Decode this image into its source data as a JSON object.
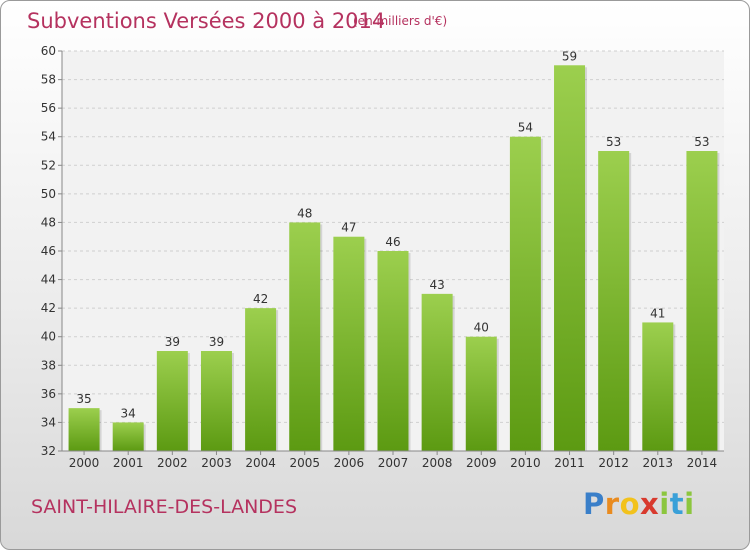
{
  "header": {
    "title": "Subventions Versées 2000 à 2014",
    "unit": "(en milliers d'€)"
  },
  "footer": {
    "commune": "SAINT-HILAIRE-DES-LANDES",
    "logo_letters": [
      "P",
      "r",
      "o",
      "x",
      "i",
      "t",
      "i"
    ],
    "logo_colors": [
      "#3a7fc9",
      "#e98b1f",
      "#f2c21c",
      "#d83a2e",
      "#8cc63e",
      "#3aa0d8",
      "#8cc63e"
    ]
  },
  "chart_data": {
    "type": "bar",
    "title": "Subventions Versées 2000 à 2014",
    "subtitle": "(en milliers d'€)",
    "xlabel": "",
    "ylabel": "",
    "categories": [
      "2000",
      "2001",
      "2002",
      "2003",
      "2004",
      "2005",
      "2006",
      "2007",
      "2008",
      "2009",
      "2010",
      "2011",
      "2012",
      "2013",
      "2014"
    ],
    "values": [
      35,
      34,
      39,
      39,
      42,
      48,
      47,
      46,
      43,
      40,
      54,
      59,
      53,
      41,
      53
    ],
    "ylim": [
      32,
      60
    ],
    "yticks": [
      32,
      34,
      36,
      38,
      40,
      42,
      44,
      46,
      48,
      50,
      52,
      54,
      56,
      58,
      60
    ],
    "grid": true,
    "bar_color_top": "#9ccf4e",
    "bar_color_bottom": "#5c9a12"
  }
}
